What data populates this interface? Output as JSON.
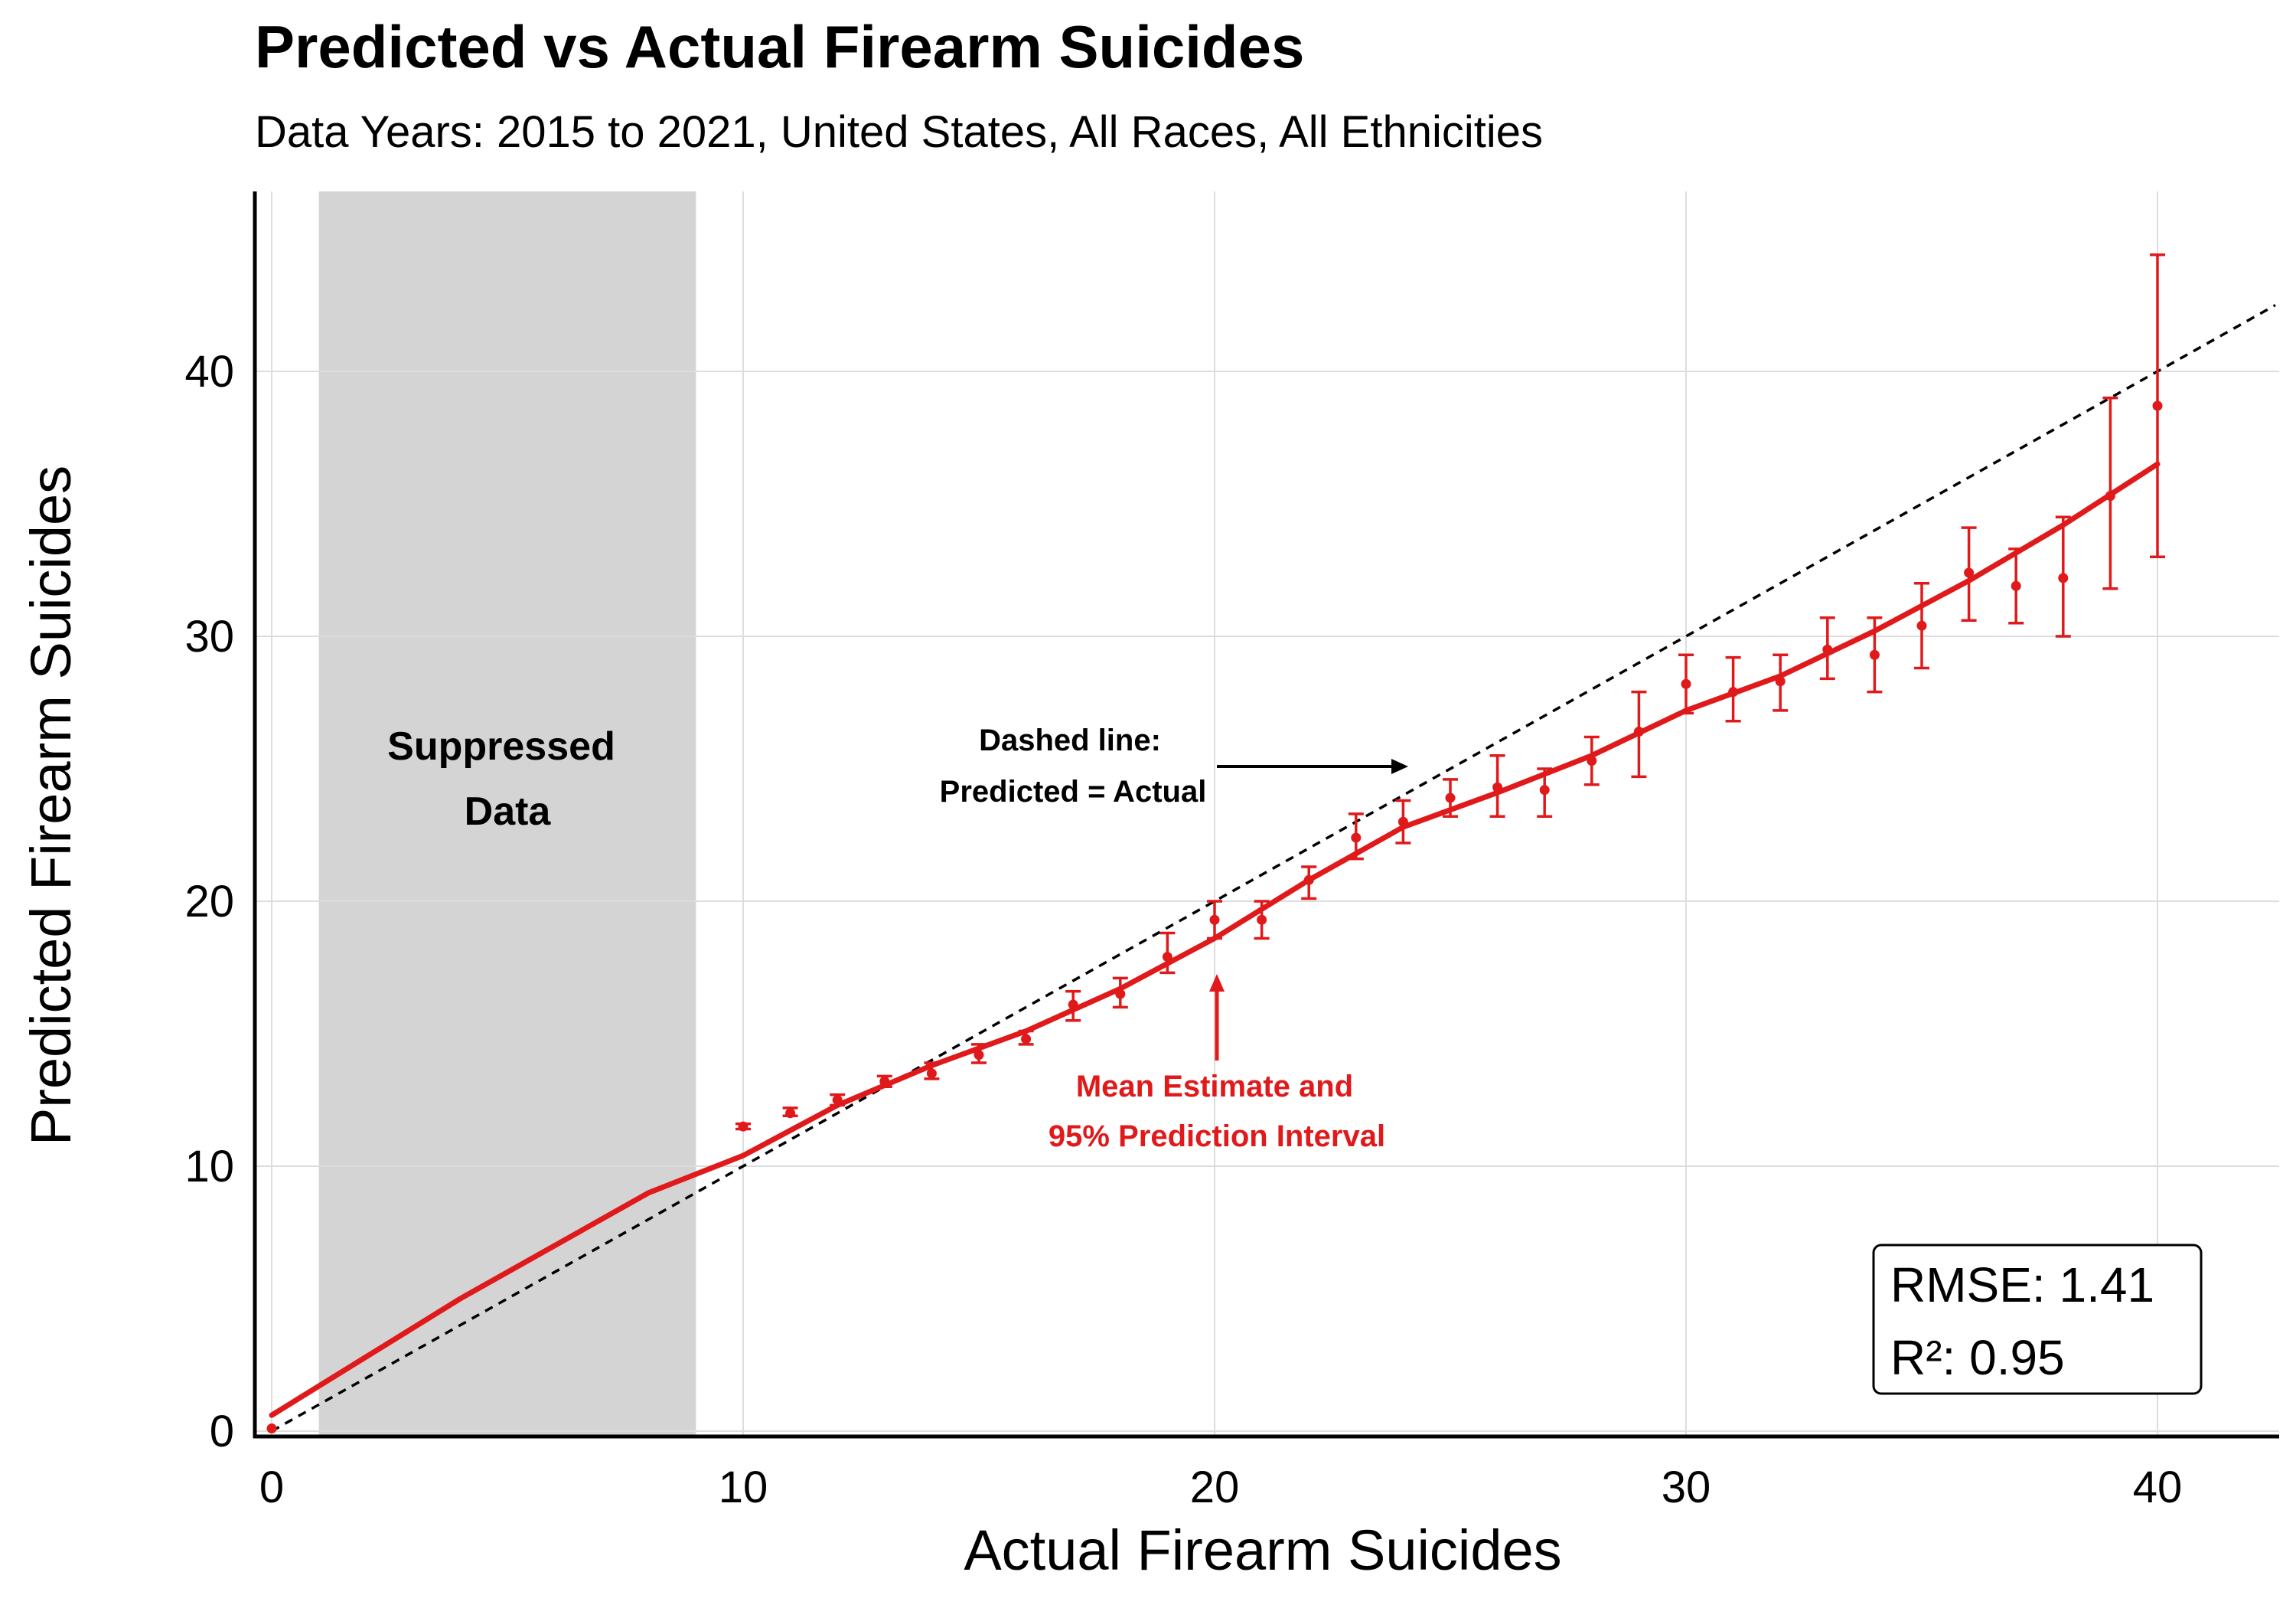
{
  "chart_data": {
    "type": "scatter",
    "title": "Predicted vs Actual Firearm Suicides",
    "subtitle": "Data Years: 2015 to 2021, United States, All Races, All Ethnicities",
    "xlabel": "Actual Firearm Suicides",
    "ylabel": "Predicted Firearm Suicides",
    "xlim": [
      -0.4,
      42.5
    ],
    "ylim": [
      -0.3,
      46.5
    ],
    "xticks": [
      0,
      10,
      20,
      30,
      40
    ],
    "yticks": [
      0,
      10,
      20,
      30,
      40
    ],
    "grid": true,
    "suppressed_region": {
      "x_start": 1,
      "x_end": 9,
      "label_line1": "Suppressed",
      "label_line2": "Data"
    },
    "identity_line": {
      "label_line1": "Dashed line:",
      "label_line2": "Predicted = Actual"
    },
    "series_label_line1": "Mean Estimate and",
    "series_label_line2": "95% Prediction Interval",
    "points": [
      {
        "x": 0,
        "y": 0.1,
        "lo": 0.1,
        "hi": 0.1
      },
      {
        "x": 10,
        "y": 11.5,
        "lo": 11.4,
        "hi": 11.6
      },
      {
        "x": 11,
        "y": 12.0,
        "lo": 11.9,
        "hi": 12.2
      },
      {
        "x": 12,
        "y": 12.5,
        "lo": 12.3,
        "hi": 12.7
      },
      {
        "x": 13,
        "y": 13.2,
        "lo": 13.0,
        "hi": 13.4
      },
      {
        "x": 14,
        "y": 13.5,
        "lo": 13.3,
        "hi": 13.9
      },
      {
        "x": 15,
        "y": 14.2,
        "lo": 13.9,
        "hi": 14.6
      },
      {
        "x": 16,
        "y": 14.8,
        "lo": 14.6,
        "hi": 15.1
      },
      {
        "x": 17,
        "y": 16.1,
        "lo": 15.5,
        "hi": 16.6
      },
      {
        "x": 18,
        "y": 16.5,
        "lo": 16.0,
        "hi": 17.1
      },
      {
        "x": 19,
        "y": 17.9,
        "lo": 17.3,
        "hi": 18.8
      },
      {
        "x": 20,
        "y": 19.3,
        "lo": 18.6,
        "hi": 20.0
      },
      {
        "x": 21,
        "y": 19.3,
        "lo": 18.6,
        "hi": 20.0
      },
      {
        "x": 22,
        "y": 20.8,
        "lo": 20.1,
        "hi": 21.3
      },
      {
        "x": 23,
        "y": 22.4,
        "lo": 21.6,
        "hi": 23.3
      },
      {
        "x": 24,
        "y": 23.0,
        "lo": 22.2,
        "hi": 23.8
      },
      {
        "x": 25,
        "y": 23.9,
        "lo": 23.2,
        "hi": 24.6
      },
      {
        "x": 26,
        "y": 24.3,
        "lo": 23.2,
        "hi": 25.5
      },
      {
        "x": 27,
        "y": 24.2,
        "lo": 23.2,
        "hi": 25.0
      },
      {
        "x": 28,
        "y": 25.3,
        "lo": 24.4,
        "hi": 26.2
      },
      {
        "x": 29,
        "y": 26.4,
        "lo": 24.7,
        "hi": 27.9
      },
      {
        "x": 30,
        "y": 28.2,
        "lo": 27.1,
        "hi": 29.3
      },
      {
        "x": 31,
        "y": 27.9,
        "lo": 26.8,
        "hi": 29.2
      },
      {
        "x": 32,
        "y": 28.3,
        "lo": 27.2,
        "hi": 29.3
      },
      {
        "x": 33,
        "y": 29.5,
        "lo": 28.4,
        "hi": 30.7
      },
      {
        "x": 34,
        "y": 29.3,
        "lo": 27.9,
        "hi": 30.7
      },
      {
        "x": 35,
        "y": 30.4,
        "lo": 28.8,
        "hi": 32.0
      },
      {
        "x": 36,
        "y": 32.4,
        "lo": 30.6,
        "hi": 34.1
      },
      {
        "x": 37,
        "y": 31.9,
        "lo": 30.5,
        "hi": 33.3
      },
      {
        "x": 38,
        "y": 32.2,
        "lo": 30.0,
        "hi": 34.5
      },
      {
        "x": 39,
        "y": 35.3,
        "lo": 31.8,
        "hi": 39.0
      },
      {
        "x": 40,
        "y": 38.7,
        "lo": 33.0,
        "hi": 44.4
      }
    ],
    "smooth_curve": [
      [
        0,
        0.6
      ],
      [
        2,
        2.8
      ],
      [
        4,
        5.0
      ],
      [
        6,
        7.0
      ],
      [
        8,
        9.0
      ],
      [
        10,
        10.4
      ],
      [
        12,
        12.3
      ],
      [
        14,
        13.8
      ],
      [
        16,
        15.1
      ],
      [
        18,
        16.7
      ],
      [
        20,
        18.6
      ],
      [
        22,
        20.8
      ],
      [
        24,
        22.8
      ],
      [
        26,
        24.1
      ],
      [
        28,
        25.5
      ],
      [
        30,
        27.2
      ],
      [
        32,
        28.5
      ],
      [
        34,
        30.2
      ],
      [
        36,
        32.1
      ],
      [
        38,
        34.2
      ],
      [
        40,
        36.5
      ]
    ],
    "stats": {
      "rmse": "RMSE: 1.41",
      "r2": "R²: 0.95"
    },
    "colors": {
      "series": "#e0191b",
      "identity": "#000000",
      "suppressed": "#d4d4d4",
      "grid": "#dddddd"
    }
  }
}
